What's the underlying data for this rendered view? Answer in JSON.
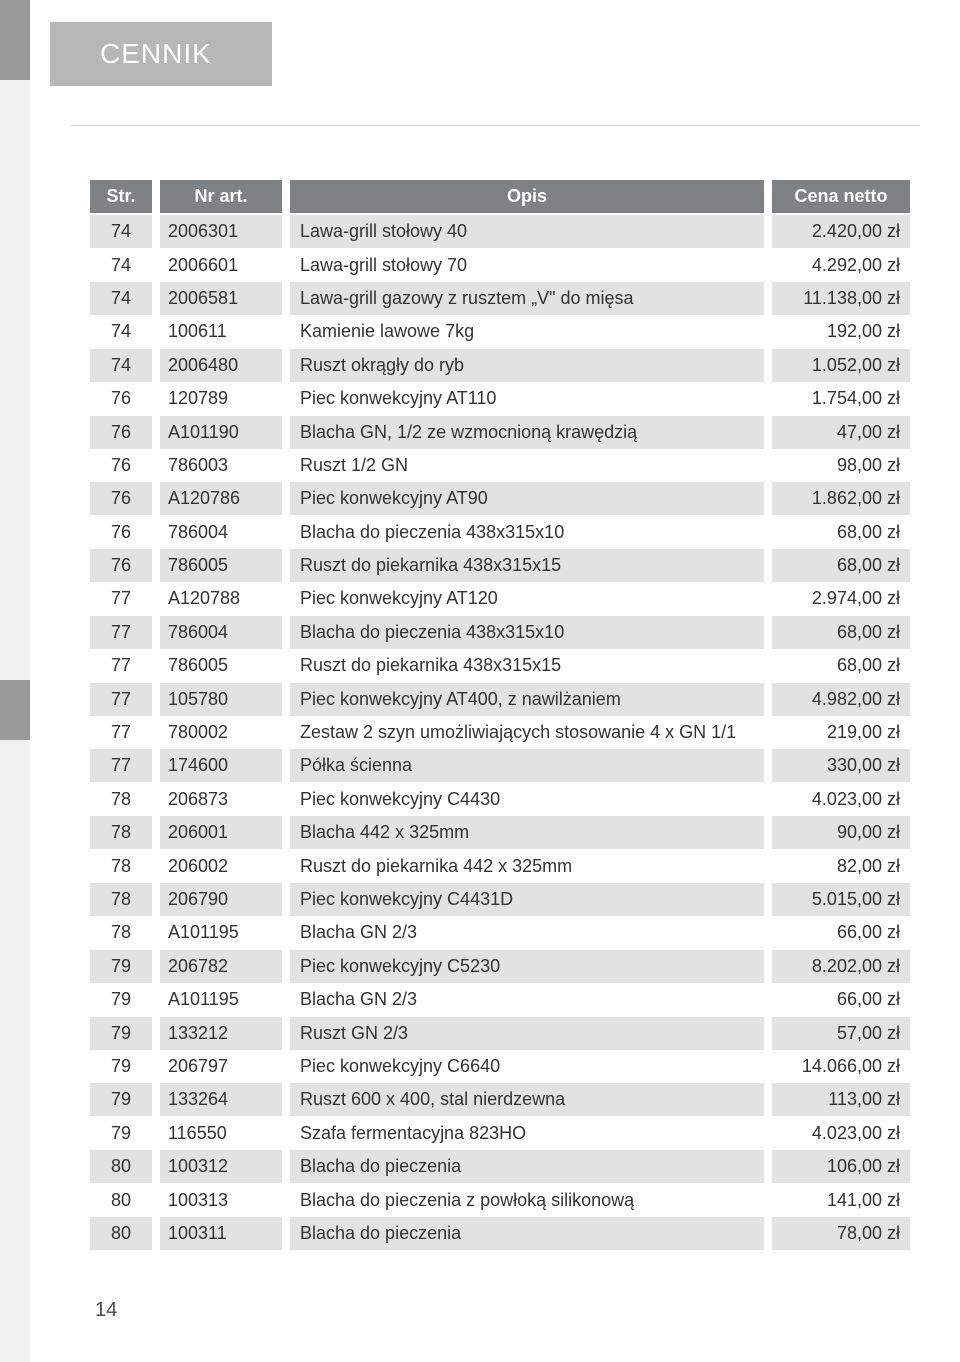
{
  "header": {
    "title": "CENNIK"
  },
  "page_number": "14",
  "table": {
    "columns": {
      "str": "Str.",
      "art": "Nr art.",
      "opis": "Opis",
      "price": "Cena netto"
    },
    "rows": [
      {
        "str": "74",
        "art": "2006301",
        "opis": "Lawa-grill stołowy 40",
        "price": "2.420,00 zł"
      },
      {
        "str": "74",
        "art": "2006601",
        "opis": "Lawa-grill stołowy 70",
        "price": "4.292,00 zł"
      },
      {
        "str": "74",
        "art": "2006581",
        "opis": "Lawa-grill gazowy z rusztem „V\" do mięsa",
        "price": "11.138,00 zł"
      },
      {
        "str": "74",
        "art": "100611",
        "opis": "Kamienie lawowe 7kg",
        "price": "192,00 zł"
      },
      {
        "str": "74",
        "art": "2006480",
        "opis": "Ruszt okrągły do ryb",
        "price": "1.052,00 zł"
      },
      {
        "str": "76",
        "art": "120789",
        "opis": "Piec konwekcyjny AT110",
        "price": "1.754,00 zł"
      },
      {
        "str": "76",
        "art": "A101190",
        "opis": "Blacha GN, 1/2 ze wzmocnioną krawędzią",
        "price": "47,00 zł"
      },
      {
        "str": "76",
        "art": "786003",
        "opis": "Ruszt 1/2 GN",
        "price": "98,00 zł"
      },
      {
        "str": "76",
        "art": "A120786",
        "opis": "Piec konwekcyjny AT90",
        "price": "1.862,00 zł"
      },
      {
        "str": "76",
        "art": "786004",
        "opis": "Blacha do pieczenia 438x315x10",
        "price": "68,00 zł"
      },
      {
        "str": "76",
        "art": "786005",
        "opis": "Ruszt do piekarnika 438x315x15",
        "price": "68,00 zł"
      },
      {
        "str": "77",
        "art": "A120788",
        "opis": "Piec konwekcyjny AT120",
        "price": "2.974,00 zł"
      },
      {
        "str": "77",
        "art": "786004",
        "opis": "Blacha do pieczenia 438x315x10",
        "price": "68,00 zł"
      },
      {
        "str": "77",
        "art": "786005",
        "opis": "Ruszt do piekarnika 438x315x15",
        "price": "68,00 zł"
      },
      {
        "str": "77",
        "art": "105780",
        "opis": "Piec konwekcyjny AT400, z nawilżaniem",
        "price": "4.982,00 zł"
      },
      {
        "str": "77",
        "art": "780002",
        "opis": "Zestaw 2 szyn umożliwiających stosowanie 4 x GN 1/1",
        "price": "219,00 zł"
      },
      {
        "str": "77",
        "art": "174600",
        "opis": "Półka ścienna",
        "price": "330,00 zł"
      },
      {
        "str": "78",
        "art": "206873",
        "opis": "Piec konwekcyjny C4430",
        "price": "4.023,00 zł"
      },
      {
        "str": "78",
        "art": "206001",
        "opis": "Blacha 442 x 325mm",
        "price": "90,00 zł"
      },
      {
        "str": "78",
        "art": "206002",
        "opis": "Ruszt do piekarnika 442 x 325mm",
        "price": "82,00 zł"
      },
      {
        "str": "78",
        "art": "206790",
        "opis": "Piec konwekcyjny C4431D",
        "price": "5.015,00 zł"
      },
      {
        "str": "78",
        "art": "A101195",
        "opis": "Blacha GN 2/3",
        "price": "66,00 zł"
      },
      {
        "str": "79",
        "art": "206782",
        "opis": "Piec konwekcyjny C5230",
        "price": "8.202,00 zł"
      },
      {
        "str": "79",
        "art": "A101195",
        "opis": "Blacha GN 2/3",
        "price": "66,00 zł"
      },
      {
        "str": "79",
        "art": "133212",
        "opis": "Ruszt GN 2/3",
        "price": "57,00 zł"
      },
      {
        "str": "79",
        "art": "206797",
        "opis": "Piec konwekcyjny C6640",
        "price": "14.066,00 zł"
      },
      {
        "str": "79",
        "art": "133264",
        "opis": "Ruszt 600 x 400, stal nierdzewna",
        "price": "113,00 zł"
      },
      {
        "str": "79",
        "art": "116550",
        "opis": "Szafa fermentacyjna 823HO",
        "price": "4.023,00 zł"
      },
      {
        "str": "80",
        "art": "100312",
        "opis": "Blacha do pieczenia",
        "price": "106,00 zł"
      },
      {
        "str": "80",
        "art": "100313",
        "opis": "Blacha do pieczenia z powłoką silikonową",
        "price": "141,00 zł"
      },
      {
        "str": "80",
        "art": "100311",
        "opis": "Blacha do pieczenia",
        "price": "78,00 zł"
      }
    ]
  },
  "styles": {
    "header_bg": "#b7b7b8",
    "th_bg": "#7f8284",
    "th_color": "#ffffff",
    "row_even_bg": "#e2e2e3",
    "row_odd_bg": "#ffffff",
    "text_color": "#333333",
    "font_size_body": 18,
    "font_size_header": 28
  }
}
